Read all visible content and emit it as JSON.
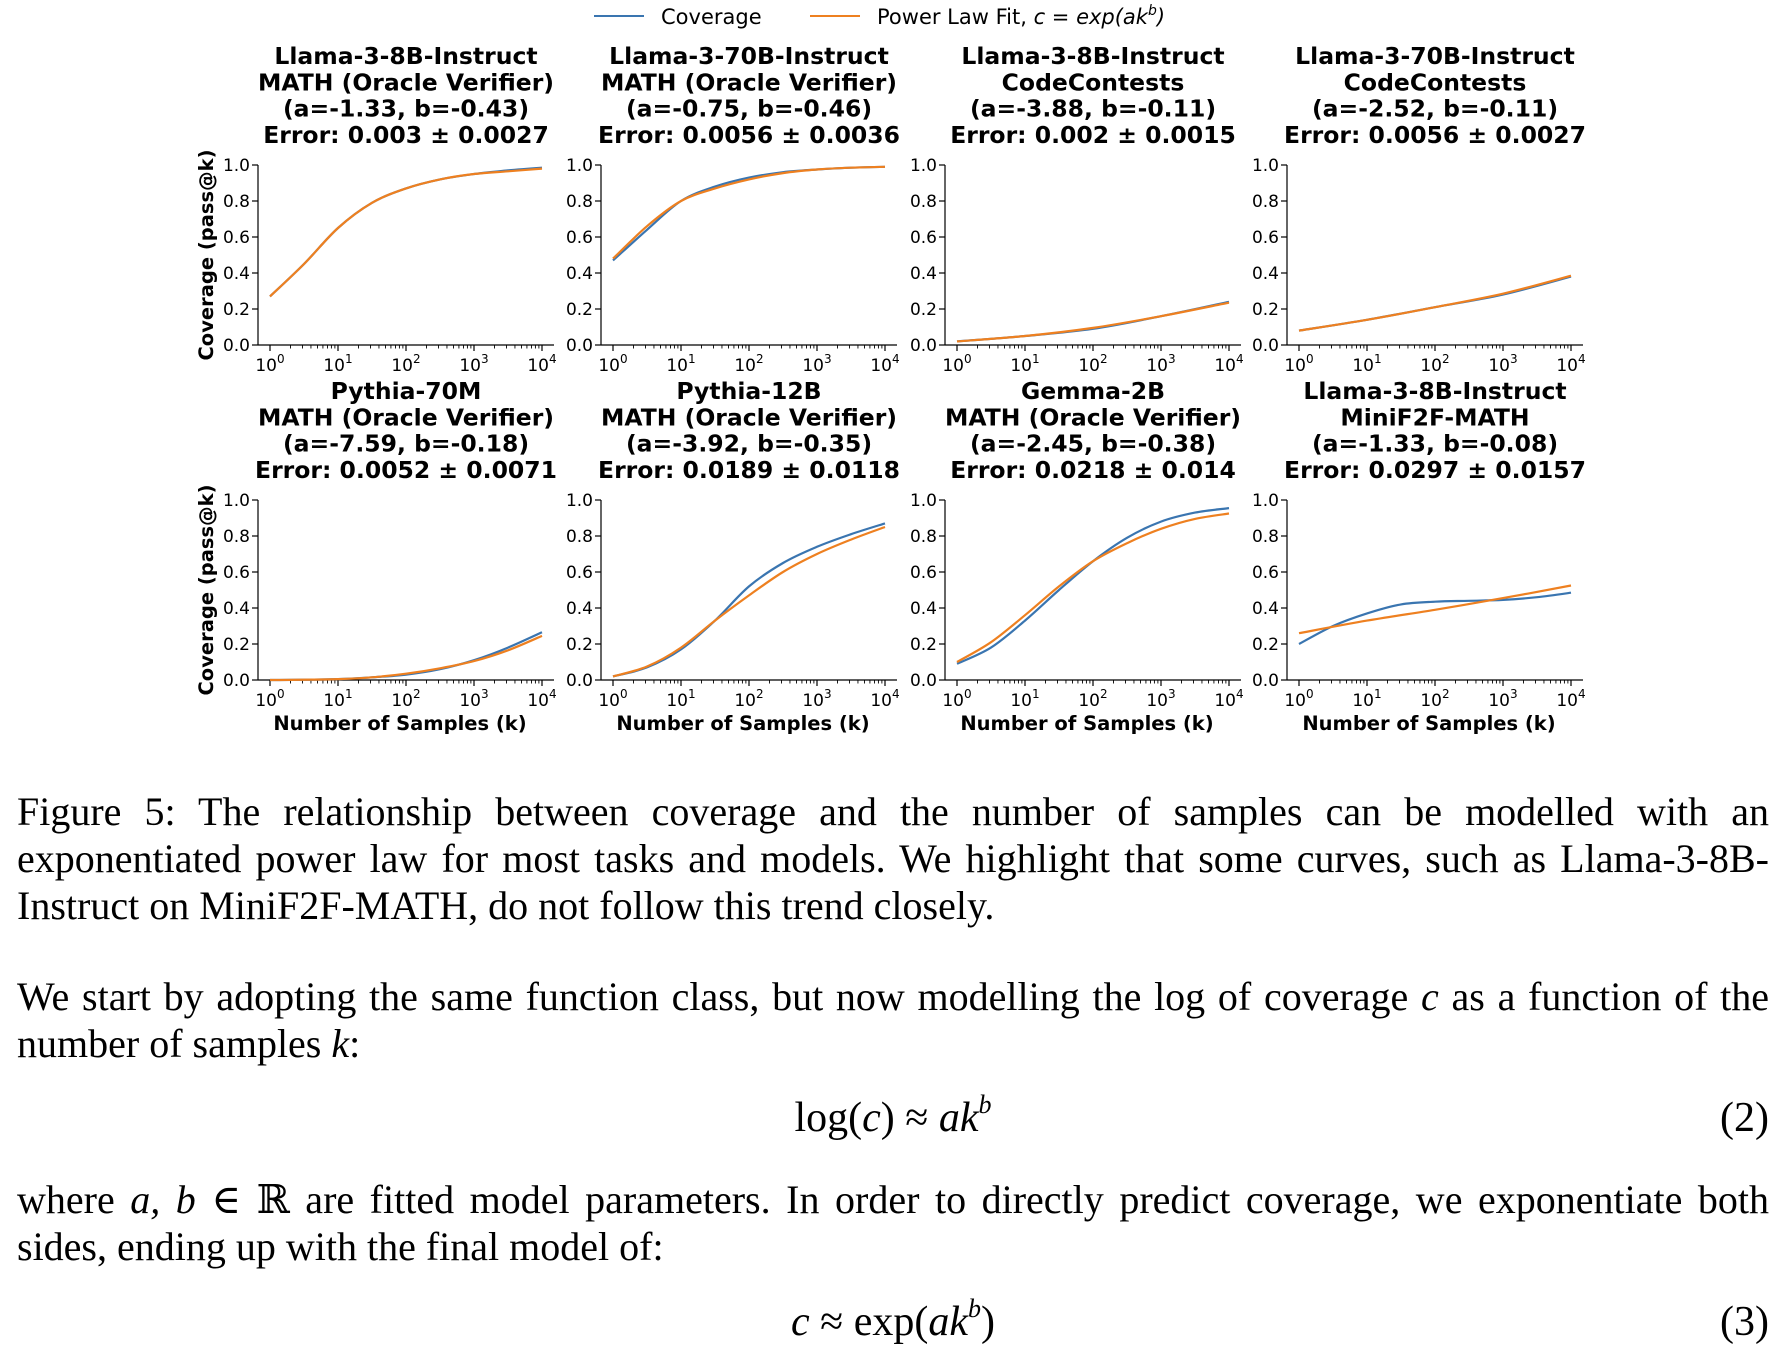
{
  "legend": {
    "coverage_label": "Coverage",
    "fit_label_prefix": "Power Law Fit, ",
    "fit_label_math_c": "c",
    "fit_label_math_eq": " = ",
    "fit_label_math_exp": "exp(ak",
    "fit_label_math_b": "b",
    "fit_label_math_close": ")"
  },
  "colors": {
    "coverage": "#3a75b0",
    "fit": "#ee8020"
  },
  "y_axis_label": "Coverage (pass@k)",
  "x_axis_label": "Number of Samples (k)",
  "y_ticks": [
    "0.0",
    "0.2",
    "0.4",
    "0.6",
    "0.8",
    "1.0"
  ],
  "x_tick_base": "10",
  "x_tick_exponents": [
    "0",
    "1",
    "2",
    "3",
    "4"
  ],
  "chart_data": [
    {
      "type": "line",
      "title": [
        "Llama-3-8B-Instruct",
        "MATH (Oracle Verifier)",
        "(a=-1.33, b=-0.43)",
        "Error: 0.003 ± 0.0027"
      ],
      "xscale": "log10",
      "xlim": [
        1,
        10000
      ],
      "ylim": [
        0,
        1
      ],
      "series": [
        {
          "name": "Coverage",
          "x": [
            0,
            0.5,
            1,
            1.5,
            2,
            2.5,
            3,
            3.5,
            4
          ],
          "values": [
            0.27,
            0.45,
            0.65,
            0.79,
            0.87,
            0.92,
            0.95,
            0.97,
            0.985
          ]
        },
        {
          "name": "Power Law Fit",
          "x": [
            0,
            0.5,
            1,
            1.5,
            2,
            2.5,
            3,
            3.5,
            4
          ],
          "values": [
            0.27,
            0.45,
            0.65,
            0.79,
            0.87,
            0.92,
            0.95,
            0.965,
            0.98
          ]
        }
      ]
    },
    {
      "type": "line",
      "title": [
        "Llama-3-70B-Instruct",
        "MATH (Oracle Verifier)",
        "(a=-0.75, b=-0.46)",
        "Error: 0.0056 ± 0.0036"
      ],
      "xscale": "log10",
      "xlim": [
        1,
        10000
      ],
      "ylim": [
        0,
        1
      ],
      "series": [
        {
          "name": "Coverage",
          "x": [
            0,
            0.5,
            1,
            1.5,
            2,
            2.5,
            3,
            3.5,
            4
          ],
          "values": [
            0.47,
            0.64,
            0.8,
            0.88,
            0.93,
            0.96,
            0.975,
            0.985,
            0.99
          ]
        },
        {
          "name": "Power Law Fit",
          "x": [
            0,
            0.5,
            1,
            1.5,
            2,
            2.5,
            3,
            3.5,
            4
          ],
          "values": [
            0.48,
            0.66,
            0.8,
            0.87,
            0.92,
            0.955,
            0.975,
            0.985,
            0.99
          ]
        }
      ]
    },
    {
      "type": "line",
      "title": [
        "Llama-3-8B-Instruct",
        "CodeContests",
        "(a=-3.88, b=-0.11)",
        "Error: 0.002 ± 0.0015"
      ],
      "xscale": "log10",
      "xlim": [
        1,
        10000
      ],
      "ylim": [
        0,
        1
      ],
      "series": [
        {
          "name": "Coverage",
          "x": [
            0,
            1,
            2,
            3,
            4
          ],
          "values": [
            0.02,
            0.05,
            0.09,
            0.16,
            0.24
          ]
        },
        {
          "name": "Power Law Fit",
          "x": [
            0,
            1,
            2,
            3,
            4
          ],
          "values": [
            0.02,
            0.05,
            0.095,
            0.16,
            0.235
          ]
        }
      ]
    },
    {
      "type": "line",
      "title": [
        "Llama-3-70B-Instruct",
        "CodeContests",
        "(a=-2.52, b=-0.11)",
        "Error: 0.0056 ± 0.0027"
      ],
      "xscale": "log10",
      "xlim": [
        1,
        10000
      ],
      "ylim": [
        0,
        1
      ],
      "series": [
        {
          "name": "Coverage",
          "x": [
            0,
            1,
            2,
            3,
            4
          ],
          "values": [
            0.08,
            0.14,
            0.21,
            0.28,
            0.38
          ]
        },
        {
          "name": "Power Law Fit",
          "x": [
            0,
            1,
            2,
            3,
            4
          ],
          "values": [
            0.08,
            0.14,
            0.21,
            0.285,
            0.385
          ]
        }
      ]
    },
    {
      "type": "line",
      "title": [
        "Pythia-70M",
        "MATH (Oracle Verifier)",
        "(a=-7.59, b=-0.18)",
        "Error: 0.0052 ± 0.0071"
      ],
      "xscale": "log10",
      "xlim": [
        1,
        10000
      ],
      "ylim": [
        0,
        1
      ],
      "series": [
        {
          "name": "Coverage",
          "x": [
            0,
            1,
            1.5,
            2,
            2.5,
            3,
            3.5,
            4
          ],
          "values": [
            0.0,
            0.005,
            0.015,
            0.03,
            0.06,
            0.11,
            0.18,
            0.265
          ]
        },
        {
          "name": "Power Law Fit",
          "x": [
            0,
            1,
            1.5,
            2,
            2.5,
            3,
            3.5,
            4
          ],
          "values": [
            0.0,
            0.005,
            0.015,
            0.035,
            0.065,
            0.105,
            0.165,
            0.245
          ]
        }
      ]
    },
    {
      "type": "line",
      "title": [
        "Pythia-12B",
        "MATH (Oracle Verifier)",
        "(a=-3.92, b=-0.35)",
        "Error: 0.0189 ± 0.0118"
      ],
      "xscale": "log10",
      "xlim": [
        1,
        10000
      ],
      "ylim": [
        0,
        1
      ],
      "series": [
        {
          "name": "Coverage",
          "x": [
            0,
            0.5,
            1,
            1.5,
            2,
            2.5,
            3,
            3.5,
            4
          ],
          "values": [
            0.02,
            0.07,
            0.17,
            0.33,
            0.52,
            0.65,
            0.74,
            0.81,
            0.87
          ]
        },
        {
          "name": "Power Law Fit",
          "x": [
            0,
            0.5,
            1,
            1.5,
            2,
            2.5,
            3,
            3.5,
            4
          ],
          "values": [
            0.02,
            0.075,
            0.18,
            0.33,
            0.47,
            0.6,
            0.7,
            0.78,
            0.85
          ]
        }
      ]
    },
    {
      "type": "line",
      "title": [
        "Gemma-2B",
        "MATH (Oracle Verifier)",
        "(a=-2.45, b=-0.38)",
        "Error: 0.0218 ± 0.014"
      ],
      "xscale": "log10",
      "xlim": [
        1,
        10000
      ],
      "ylim": [
        0,
        1
      ],
      "series": [
        {
          "name": "Coverage",
          "x": [
            0,
            0.5,
            1,
            1.5,
            2,
            2.5,
            3,
            3.5,
            4
          ],
          "values": [
            0.09,
            0.18,
            0.33,
            0.5,
            0.66,
            0.79,
            0.88,
            0.93,
            0.955
          ]
        },
        {
          "name": "Power Law Fit",
          "x": [
            0,
            0.5,
            1,
            1.5,
            2,
            2.5,
            3,
            3.5,
            4
          ],
          "values": [
            0.1,
            0.21,
            0.36,
            0.52,
            0.66,
            0.76,
            0.84,
            0.895,
            0.925
          ]
        }
      ]
    },
    {
      "type": "line",
      "title": [
        "Llama-3-8B-Instruct",
        "MiniF2F-MATH",
        "(a=-1.33, b=-0.08)",
        "Error: 0.0297 ± 0.0157"
      ],
      "xscale": "log10",
      "xlim": [
        1,
        10000
      ],
      "ylim": [
        0,
        1
      ],
      "series": [
        {
          "name": "Coverage",
          "x": [
            0,
            0.5,
            1,
            1.5,
            2,
            2.5,
            3,
            3.5,
            4
          ],
          "values": [
            0.2,
            0.3,
            0.37,
            0.42,
            0.435,
            0.44,
            0.445,
            0.46,
            0.485
          ]
        },
        {
          "name": "Power Law Fit",
          "x": [
            0,
            1,
            2,
            3,
            4
          ],
          "values": [
            0.26,
            0.33,
            0.39,
            0.455,
            0.525
          ]
        }
      ]
    }
  ],
  "caption": "Figure 5: The relationship between coverage and the number of samples can be modelled with an exponentiated power law for most tasks and models. We highlight that some curves, such as Llama-3-8B-Instruct on MiniF2F-MATH, do not follow this trend closely.",
  "para1": {
    "before_c": "We start by adopting the same function class, but now modelling the log of coverage ",
    "var_c": "c",
    "after_c": " as a function of the number of samples ",
    "var_k": "k",
    "end": ":"
  },
  "eq2": {
    "lhs": "log(",
    "lhs_var": "c",
    "lhs_close": ")",
    "approx": " ≈ ",
    "rhs_a": "a",
    "rhs_k": "k",
    "rhs_exp": "b",
    "number": "(2)"
  },
  "para2": {
    "where": "where ",
    "vars": "a, b",
    "in": " ∈ ",
    "reals": "ℝ",
    "rest": " are fitted model parameters. In order to directly predict coverage, we exponentiate both sides, ending up with the final model of:"
  },
  "eq3": {
    "lhs": "c",
    "approx": " ≈ ",
    "fn": "exp(",
    "rhs_a": "a",
    "rhs_k": "k",
    "rhs_exp": "b",
    "close": ")",
    "number": "(3)"
  }
}
